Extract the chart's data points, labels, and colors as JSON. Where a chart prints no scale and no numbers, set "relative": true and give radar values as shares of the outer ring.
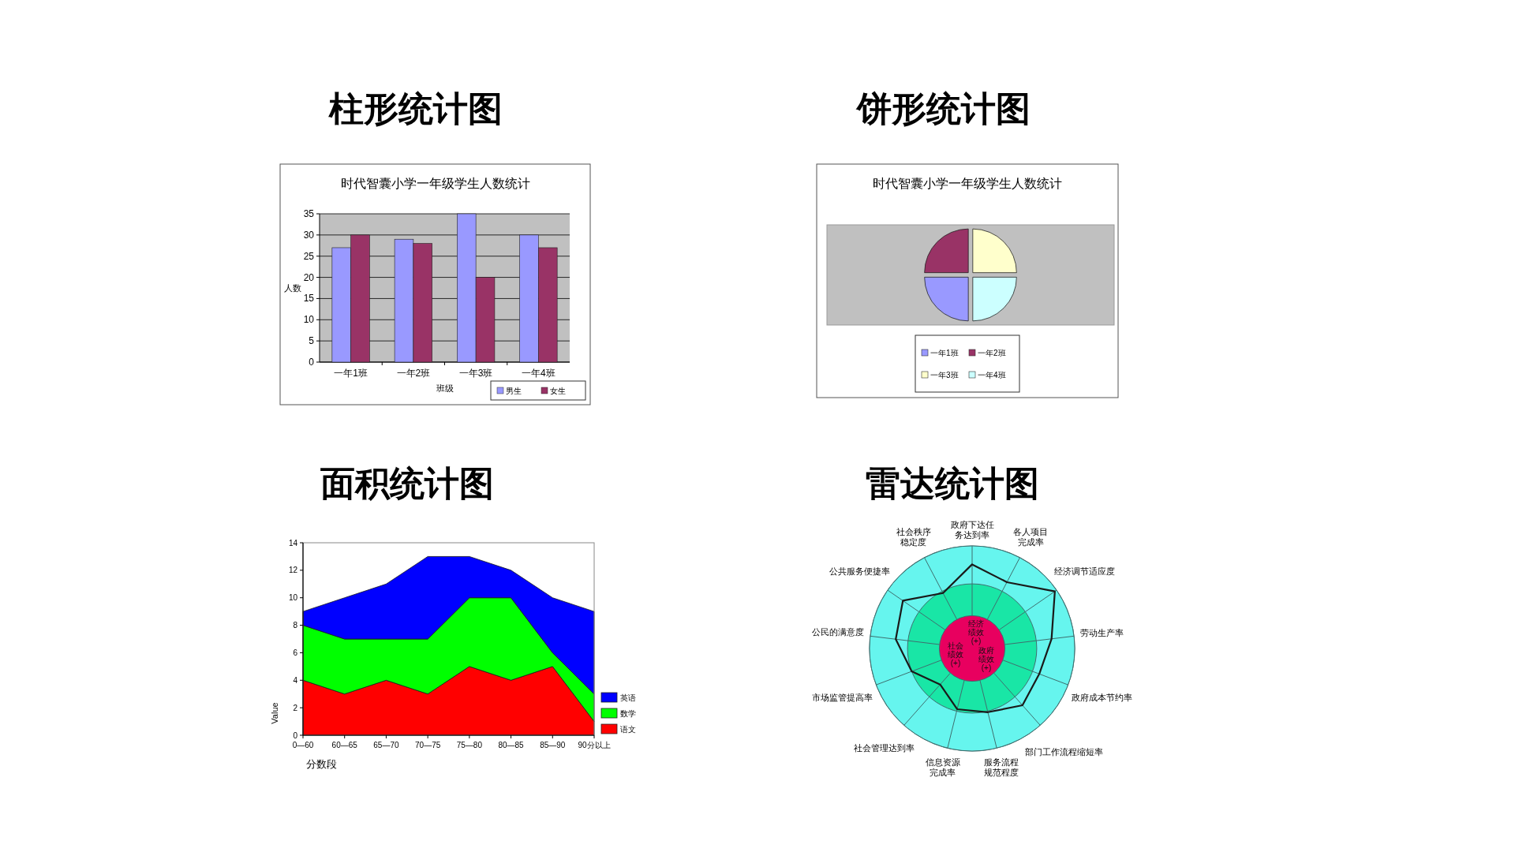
{
  "chart_data": [
    {
      "type": "bar",
      "title": "柱形统计图",
      "subtitle": "时代智囊小学一年级学生人数统计",
      "categories": [
        "一年1班",
        "一年2班",
        "一年3班",
        "一年4班"
      ],
      "series": [
        {
          "name": "男生",
          "color": "#9999ff",
          "values": [
            27,
            29,
            35,
            30
          ]
        },
        {
          "name": "女生",
          "color": "#993366",
          "values": [
            30,
            28,
            20,
            27
          ]
        }
      ],
      "ylim": [
        0,
        35
      ],
      "yticks": [
        0,
        5,
        10,
        15,
        20,
        25,
        30,
        35
      ],
      "grid": "y",
      "xlabel": "班级",
      "ylabel": "人数",
      "legend": "bottom right"
    },
    {
      "type": "pie",
      "title": "饼形统计图",
      "subtitle": "时代智囊小学一年级学生人数统计",
      "categories": [
        "一年1班",
        "一年2班",
        "一年3班",
        "一年4班"
      ],
      "values": [
        25,
        25,
        25,
        25
      ],
      "colors": [
        "#9999ff",
        "#993366",
        "#ffffcc",
        "#ccffff"
      ],
      "legend": "bottom"
    },
    {
      "type": "area",
      "title": "面积统计图",
      "categories": [
        "0—60",
        "60—65",
        "65—70",
        "70—75",
        "75—80",
        "80—85",
        "85—90",
        "90分以上"
      ],
      "stacked": true,
      "series": [
        {
          "name": "语文",
          "color": "#ff0000",
          "values": [
            4,
            3,
            4,
            3,
            5,
            4,
            5,
            1
          ]
        },
        {
          "name": "数学",
          "color": "#00ff00",
          "values": [
            4,
            4,
            3,
            4,
            5,
            6,
            1,
            2
          ]
        },
        {
          "name": "英语",
          "color": "#0000ff",
          "values": [
            1,
            3,
            4,
            6,
            3,
            2,
            4,
            6
          ]
        }
      ],
      "ylim": [
        0,
        14
      ],
      "yticks": [
        0,
        2,
        4,
        6,
        8,
        10,
        12,
        14
      ],
      "xlabel": "分数段",
      "ylabel": "Value",
      "legend": "bottom right"
    },
    {
      "type": "radar",
      "title": "雷达统计图",
      "categories": [
        "政府下达任务达到率",
        "各人项目完成率",
        "经济调节适应度",
        "劳动生产率",
        "政府成本节约率",
        "部门工作流程缩短率",
        "服务流程规范程度",
        "信息资源完成率",
        "社会管理达到率",
        "市场监管提高率",
        "公民的满意度",
        "公共服务便捷率",
        "社会秩序稳定度"
      ],
      "relative": true,
      "series": [
        {
          "color": "#1a1a1a",
          "values": [
            0.82,
            0.73,
            0.98,
            0.78,
            0.7,
            0.74,
            0.64,
            0.61,
            0.47,
            0.63,
            0.75,
            0.82,
            0.61
          ]
        }
      ],
      "annotations": [
        "经济绩效(+)",
        "社会绩效(+)",
        "政府绩效(+)"
      ]
    }
  ]
}
